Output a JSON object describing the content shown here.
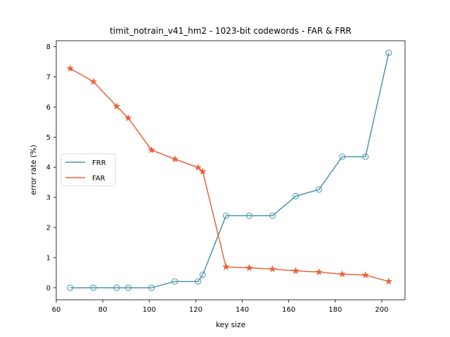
{
  "chart_data": {
    "type": "line",
    "title": "timit_notrain_v41_hm2 - 1023-bit codewords - FAR & FRR",
    "xlabel": "key size",
    "ylabel": "error rate (%)",
    "xlim": [
      60,
      210
    ],
    "ylim": [
      -0.4,
      8.2
    ],
    "xticks": [
      60,
      80,
      100,
      120,
      140,
      160,
      180,
      200
    ],
    "yticks": [
      0,
      1,
      2,
      3,
      4,
      5,
      6,
      7,
      8
    ],
    "grid": false,
    "legend_position": "center-left",
    "series": [
      {
        "name": "FRR",
        "color": "#4a98ae",
        "marker": "circle",
        "x": [
          66,
          76,
          86,
          91,
          101,
          111,
          121,
          123,
          133,
          143,
          153,
          163,
          173,
          183,
          193,
          203
        ],
        "y": [
          0.0,
          0.0,
          0.0,
          0.0,
          0.0,
          0.21,
          0.21,
          0.43,
          2.39,
          2.39,
          2.39,
          3.04,
          3.26,
          4.35,
          4.35,
          7.8
        ]
      },
      {
        "name": "FAR",
        "color": "#e8643c",
        "marker": "star",
        "x": [
          66,
          76,
          86,
          91,
          101,
          111,
          121,
          123,
          133,
          143,
          153,
          163,
          173,
          183,
          193,
          203
        ],
        "y": [
          7.28,
          6.84,
          6.02,
          5.63,
          4.57,
          4.27,
          3.99,
          3.86,
          0.69,
          0.66,
          0.62,
          0.56,
          0.52,
          0.45,
          0.42,
          0.21
        ]
      }
    ]
  }
}
